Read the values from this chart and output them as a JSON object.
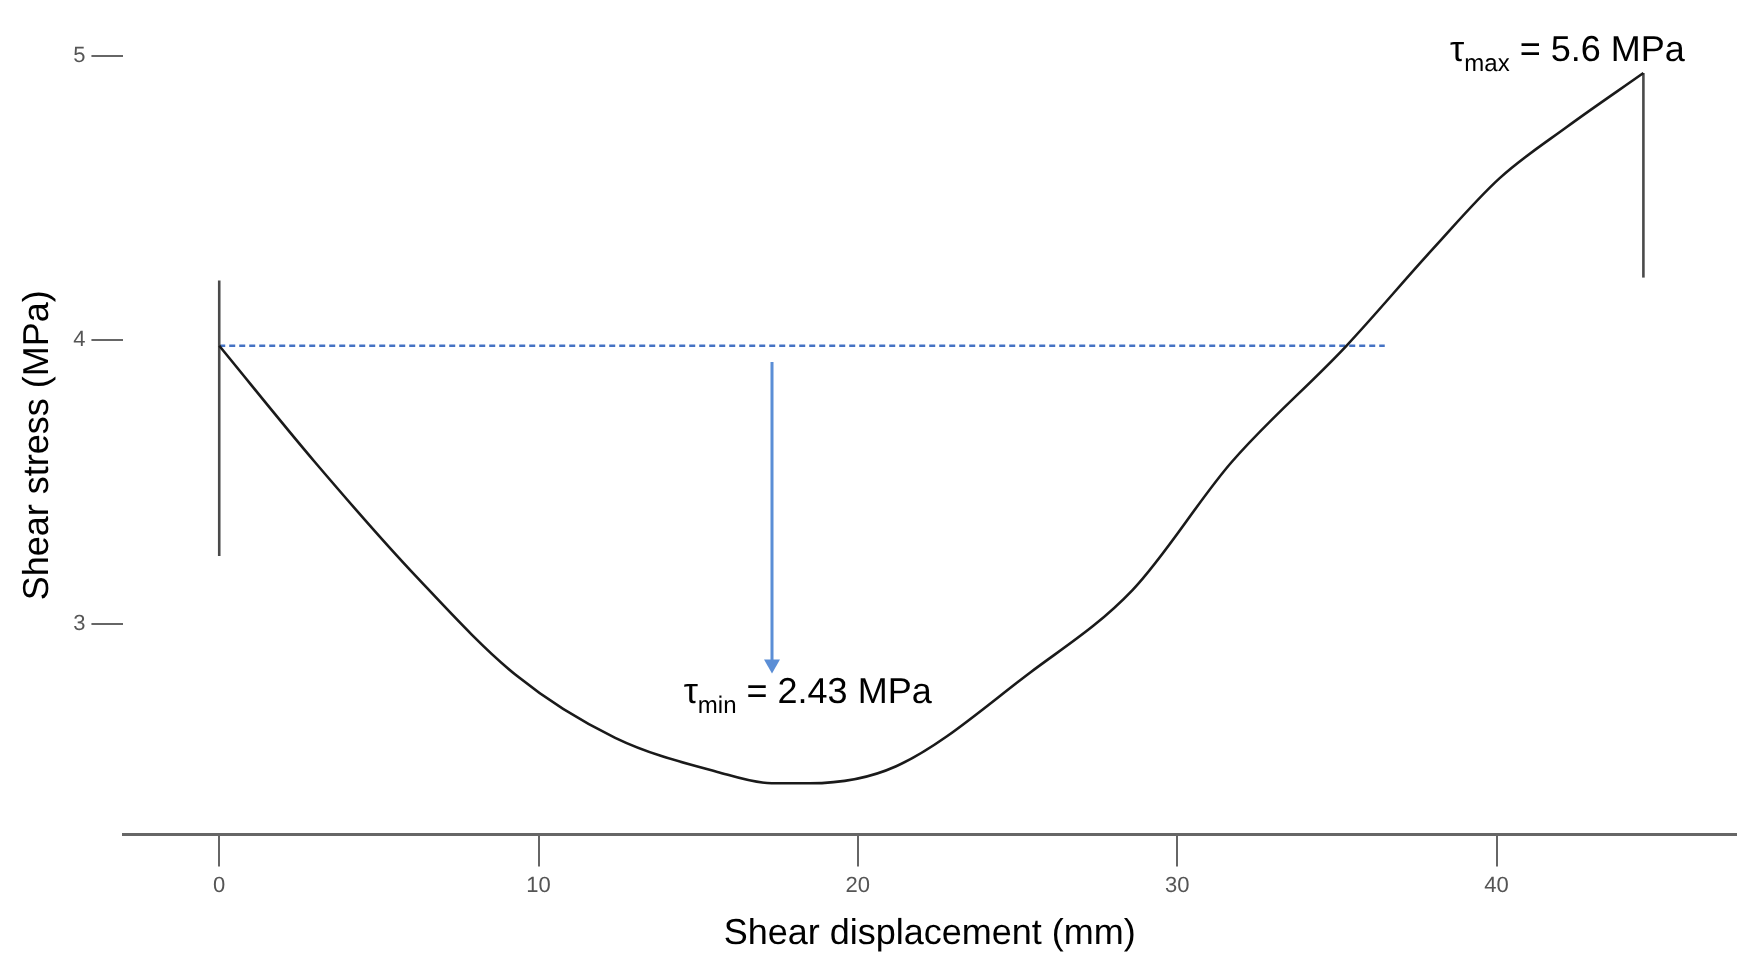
{
  "chart_data": {
    "type": "line",
    "xlabel": "Shear displacement (mm)",
    "ylabel": "Shear stress (MPa)",
    "xlim": [
      -3,
      47.5
    ],
    "xticks": [
      0,
      10,
      20,
      30,
      40
    ],
    "ylim": [
      2.26,
      5
    ],
    "yticks": [
      3,
      4,
      5
    ],
    "tick_labels": [
      "x",
      "y"
    ],
    "grid": false,
    "legend": false,
    "marker": "none",
    "series": [
      {
        "color": "#1a1a1a",
        "x": [
          0,
          3.0,
          6.15,
          9.3,
          12.4,
          15.6,
          17.3,
          18.5,
          21.2,
          25.4,
          28.6,
          31.7,
          35.3,
          38.0,
          40.1,
          42.2,
          44.6
        ],
        "values": [
          3.98,
          3.57,
          3.17,
          2.82,
          2.6,
          2.48,
          2.44,
          2.44,
          2.5,
          2.83,
          3.12,
          3.57,
          3.98,
          4.32,
          4.57,
          4.75,
          4.94
        ]
      },
      {
        "color": "#4a4a4a",
        "x": [
          0,
          0
        ],
        "values": [
          3.24,
          4.21
        ]
      },
      {
        "color": "#4a4a4a",
        "x": [
          44.6,
          44.6
        ],
        "values": [
          4.22,
          4.94
        ]
      },
      {
        "color": "#4472c4",
        "line_style": "dashed",
        "x": [
          0,
          36.5
        ],
        "values": [
          3.98,
          3.98
        ]
      }
    ],
    "annotations": [
      "τ$_{max}$ = 5.6 MPa",
      "τ$_{min}$ = 2.43 MPa"
    ]
  }
}
